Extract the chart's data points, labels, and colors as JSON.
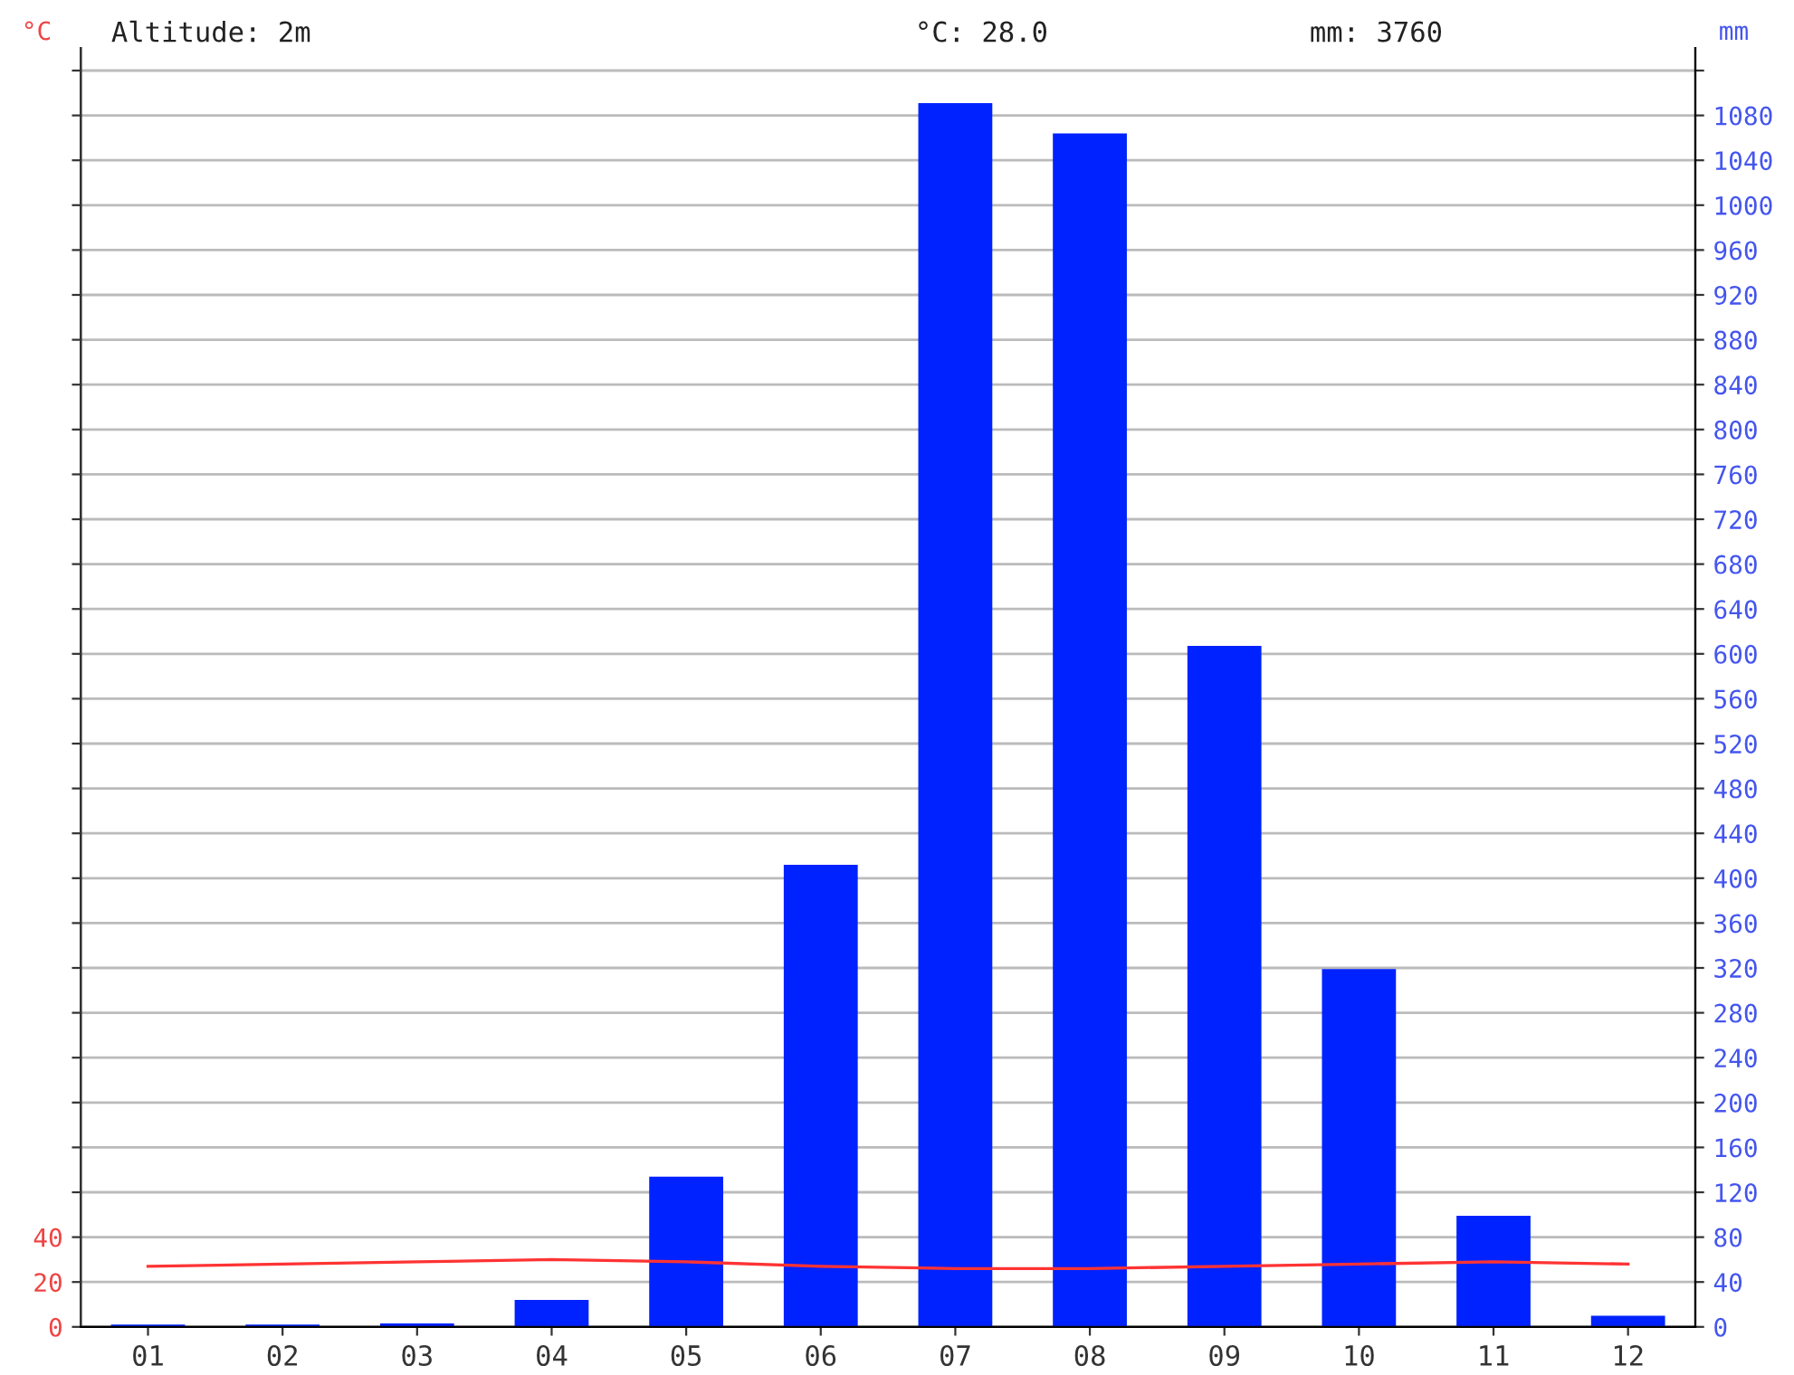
{
  "chart_data": {
    "type": "bar",
    "categories": [
      "01",
      "02",
      "03",
      "04",
      "05",
      "06",
      "07",
      "08",
      "09",
      "10",
      "11",
      "12"
    ],
    "series": [
      {
        "axis": "y2",
        "color": "#0022ff",
        "values": [
          2,
          2,
          3,
          24,
          134,
          412,
          1091,
          1064,
          607,
          319,
          99,
          10
        ]
      },
      {
        "type": "line",
        "axis": "y",
        "color": "#ff3333",
        "values": [
          27,
          28,
          29,
          30,
          29,
          27,
          26,
          26,
          27,
          28,
          29,
          28
        ]
      }
    ],
    "ylabel": "°C",
    "y2label": "mm",
    "ylim": [
      0,
      570
    ],
    "yticks": [
      0,
      20,
      40,
      {
        "value": 60,
        "label": null
      },
      {
        "value": 80,
        "label": null
      },
      {
        "value": 100,
        "label": null
      },
      {
        "value": 120,
        "label": null
      },
      {
        "value": 140,
        "label": null
      },
      {
        "value": 160,
        "label": null
      },
      {
        "value": 180,
        "label": null
      },
      {
        "value": 200,
        "label": null
      },
      {
        "value": 220,
        "label": null
      },
      {
        "value": 240,
        "label": null
      },
      {
        "value": 260,
        "label": null
      },
      {
        "value": 280,
        "label": null
      },
      {
        "value": 300,
        "label": null
      },
      {
        "value": 320,
        "label": null
      },
      {
        "value": 340,
        "label": null
      },
      {
        "value": 360,
        "label": null
      },
      {
        "value": 380,
        "label": null
      },
      {
        "value": 400,
        "label": null
      },
      {
        "value": 420,
        "label": null
      },
      {
        "value": 440,
        "label": null
      },
      {
        "value": 460,
        "label": null
      },
      {
        "value": 480,
        "label": null
      },
      {
        "value": 500,
        "label": null
      },
      {
        "value": 520,
        "label": null
      },
      {
        "value": 540,
        "label": null
      },
      {
        "value": 560,
        "label": null
      }
    ],
    "y2lim": [
      0,
      1140
    ],
    "y2ticks": [
      0,
      40,
      80,
      120,
      160,
      200,
      240,
      280,
      320,
      360,
      400,
      440,
      480,
      520,
      560,
      600,
      640,
      680,
      720,
      760,
      800,
      840,
      880,
      920,
      960,
      1000,
      1040,
      1080,
      {
        "value": 1120,
        "label": null
      }
    ],
    "grid": "y",
    "marker": "none",
    "line_style": "solid",
    "annotations": [
      "Altitude: 2m",
      "°C: 28.0",
      "mm: 3760"
    ]
  }
}
